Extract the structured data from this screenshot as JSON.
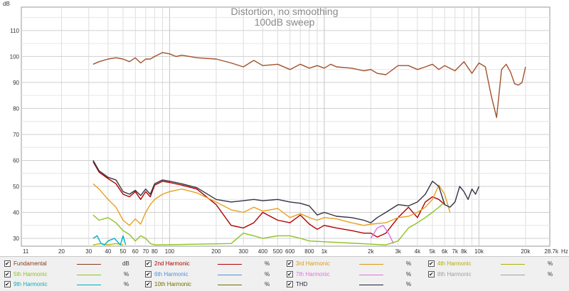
{
  "chart_data": {
    "type": "line",
    "title": "Distortion, no smoothing",
    "subtitle": "100dB sweep",
    "y_unit_label": "dB",
    "x_unit_label": "Hz",
    "xscale": "log",
    "xlim": [
      11,
      28700
    ],
    "ylim": [
      27,
      119
    ],
    "grid": true,
    "x_ticks": [
      {
        "value": 11,
        "label": "11"
      },
      {
        "value": 20,
        "label": "20"
      },
      {
        "value": 30,
        "label": "30"
      },
      {
        "value": 40,
        "label": "40"
      },
      {
        "value": 50,
        "label": "50"
      },
      {
        "value": 60,
        "label": "60"
      },
      {
        "value": 70,
        "label": "70"
      },
      {
        "value": 80,
        "label": "80"
      },
      {
        "value": 100,
        "label": "100"
      },
      {
        "value": 200,
        "label": "200"
      },
      {
        "value": 300,
        "label": "300"
      },
      {
        "value": 400,
        "label": "400"
      },
      {
        "value": 500,
        "label": "500"
      },
      {
        "value": 600,
        "label": "600"
      },
      {
        "value": 800,
        "label": "800"
      },
      {
        "value": 1000,
        "label": "1k"
      },
      {
        "value": 2000,
        "label": "2k"
      },
      {
        "value": 3000,
        "label": "3k"
      },
      {
        "value": 4000,
        "label": "4k"
      },
      {
        "value": 5000,
        "label": "5k"
      },
      {
        "value": 6000,
        "label": "6k"
      },
      {
        "value": 7000,
        "label": "7k"
      },
      {
        "value": 8000,
        "label": "8k"
      },
      {
        "value": 10000,
        "label": "10k"
      },
      {
        "value": 20000,
        "label": "20k"
      },
      {
        "value": 28700,
        "label": "28.7k"
      }
    ],
    "y_ticks": [
      30,
      40,
      50,
      60,
      70,
      80,
      90,
      100,
      110
    ],
    "series": [
      {
        "name": "Fundamental",
        "unit": "dB",
        "color": "#a0522d",
        "legend_color": "#8b3a1a",
        "x": [
          32,
          35,
          40,
          45,
          50,
          55,
          60,
          65,
          70,
          75,
          80,
          90,
          100,
          110,
          120,
          150,
          200,
          250,
          300,
          350,
          400,
          500,
          600,
          700,
          800,
          900,
          1000,
          1100,
          1200,
          1500,
          1800,
          2000,
          2200,
          2500,
          3000,
          3500,
          4000,
          4500,
          5000,
          5500,
          6000,
          7000,
          8000,
          9000,
          10000,
          11000,
          12000,
          13000,
          14000,
          15000,
          16000,
          17000,
          18000,
          19000,
          20000
        ],
        "y": [
          97,
          98,
          99,
          99.5,
          99,
          98,
          99.5,
          97.5,
          99,
          99,
          100,
          101.5,
          101,
          100,
          100.5,
          99.5,
          99,
          97.5,
          96,
          98.5,
          96.5,
          97,
          95,
          97,
          95.5,
          96.5,
          95.5,
          97,
          96,
          95.5,
          94.5,
          95,
          93.5,
          93,
          96.5,
          96.5,
          95,
          96,
          97,
          95,
          96.5,
          94.5,
          98,
          93.5,
          97.5,
          96,
          85,
          76.5,
          95,
          97,
          94,
          89.5,
          89,
          90,
          96
        ]
      },
      {
        "name": "2nd Harmonic",
        "unit": "%",
        "color": "#b00000",
        "legend_color": "#b00000",
        "x": [
          32,
          35,
          40,
          45,
          50,
          55,
          60,
          65,
          70,
          75,
          80,
          90,
          100,
          120,
          150,
          200,
          250,
          300,
          350,
          400,
          500,
          600,
          700,
          800,
          900,
          1000,
          1200,
          1500,
          1800,
          2000,
          2200,
          2500,
          3000,
          3500,
          4000,
          4500,
          5000,
          5500,
          6000
        ],
        "y": [
          59.5,
          55.5,
          53,
          51,
          47,
          46,
          48,
          45,
          48,
          46,
          50.5,
          52,
          51.5,
          50.5,
          49,
          43,
          35,
          34,
          36,
          40,
          37,
          36,
          39,
          35.5,
          33.5,
          35,
          34,
          33,
          32,
          32,
          30.5,
          32,
          38,
          42,
          38,
          44,
          46,
          45,
          43
        ]
      },
      {
        "name": "3rd Harmonic",
        "unit": "%",
        "color": "#e8a020",
        "legend_color": "#e09a10",
        "x": [
          32,
          35,
          40,
          45,
          50,
          55,
          60,
          65,
          70,
          75,
          80,
          90,
          100,
          120,
          150,
          200,
          250,
          300,
          350,
          400,
          500,
          600,
          700,
          800,
          900,
          1000,
          1200,
          1500,
          1800,
          2000,
          2500,
          3000,
          3500,
          4000,
          4500,
          5000,
          5500,
          6000,
          6500
        ],
        "y": [
          51,
          49,
          45,
          42,
          37,
          35,
          37.5,
          35.5,
          40,
          43,
          45,
          47,
          48,
          49,
          47.5,
          44,
          41,
          40,
          42,
          40.5,
          41.5,
          38,
          39.5,
          38,
          37,
          38,
          37.5,
          36,
          35,
          35.5,
          36,
          38,
          38.5,
          40,
          42,
          45,
          50.5,
          47,
          40
        ]
      },
      {
        "name": "4th Harmonic",
        "unit": "%",
        "color": "#b8b800",
        "legend_color": "#b0b000",
        "x": [
          32,
          36,
          40,
          45,
          50
        ],
        "y": [
          27.5,
          28,
          27.5,
          28,
          27.5
        ]
      },
      {
        "name": "5th Harmonic",
        "unit": "%",
        "color": "#8fc31f",
        "legend_color": "#8fc31f",
        "x": [
          32,
          35,
          40,
          45,
          50,
          55,
          60,
          65,
          70,
          75,
          80,
          250,
          300,
          350,
          400,
          500,
          600,
          700,
          800,
          2500,
          3000,
          3500,
          4000,
          4500,
          5000,
          5500,
          6000
        ],
        "y": [
          39,
          37,
          38,
          36,
          33,
          31.5,
          29,
          31,
          30,
          28,
          27.5,
          28,
          32,
          31,
          30,
          31,
          31,
          30,
          29,
          27.5,
          29,
          34,
          36,
          38,
          40,
          42,
          44
        ]
      },
      {
        "name": "6th Harmonic",
        "unit": "%",
        "color": "#4a90d9",
        "legend_color": "#4a90d9",
        "x": [],
        "y": []
      },
      {
        "name": "7th Harmonic",
        "unit": "%",
        "color": "#e070e0",
        "legend_color": "#e070e0",
        "x": [
          2000,
          2200,
          2400,
          2600,
          2800
        ],
        "y": [
          30,
          34,
          35,
          32,
          28
        ]
      },
      {
        "name": "8th Harmonic",
        "unit": "%",
        "color": "#a0a0a0",
        "legend_color": "#a0a0a0",
        "x": [],
        "y": []
      },
      {
        "name": "9th Harmonic",
        "unit": "%",
        "color": "#00b0c0",
        "legend_color": "#00b0c0",
        "x": [
          32,
          34,
          36,
          38,
          40,
          44,
          48,
          50,
          52
        ],
        "y": [
          30,
          31,
          28,
          27.5,
          29,
          30,
          27.5,
          31,
          27.5
        ]
      },
      {
        "name": "10th Harmonic",
        "unit": "%",
        "color": "#707000",
        "legend_color": "#707000",
        "x": [],
        "y": []
      },
      {
        "name": "THD",
        "unit": "%",
        "color": "#333344",
        "legend_color": "#222233",
        "x": [
          32,
          35,
          40,
          45,
          50,
          55,
          60,
          65,
          70,
          75,
          80,
          90,
          100,
          120,
          150,
          200,
          250,
          300,
          350,
          400,
          500,
          600,
          700,
          800,
          900,
          1000,
          1200,
          1500,
          1800,
          2000,
          2200,
          2500,
          3000,
          3500,
          4000,
          4500,
          5000,
          5500,
          6000,
          6500,
          7000,
          7500,
          8000,
          8500,
          9000,
          9500,
          10000
        ],
        "y": [
          60,
          56,
          53.5,
          52.5,
          48,
          47,
          48.5,
          46.5,
          49,
          47,
          51,
          52.5,
          52,
          51,
          49.5,
          45,
          44,
          44.5,
          45,
          44.5,
          45,
          44,
          43.5,
          42.5,
          39,
          40,
          38.5,
          38,
          37,
          36,
          38,
          40,
          43,
          42.5,
          44,
          47,
          52,
          50,
          43,
          42,
          44,
          50,
          48,
          45,
          49,
          47,
          50
        ]
      }
    ]
  },
  "legend": {
    "items": [
      {
        "label": "Fundamental",
        "unit": "dB"
      },
      {
        "label": "2nd Harmonic",
        "unit": "%"
      },
      {
        "label": "3rd Harmonic",
        "unit": "%"
      },
      {
        "label": "4th Harmonic",
        "unit": "%"
      },
      {
        "label": "5th Harmonic",
        "unit": "%"
      },
      {
        "label": "6th Harmonic",
        "unit": "%"
      },
      {
        "label": "7th Harmonic",
        "unit": "%"
      },
      {
        "label": "8th Harmonic",
        "unit": "%"
      },
      {
        "label": "9th Harmonic",
        "unit": "%"
      },
      {
        "label": "10th Harmonic",
        "unit": "%"
      },
      {
        "label": "THD",
        "unit": "%"
      }
    ]
  }
}
